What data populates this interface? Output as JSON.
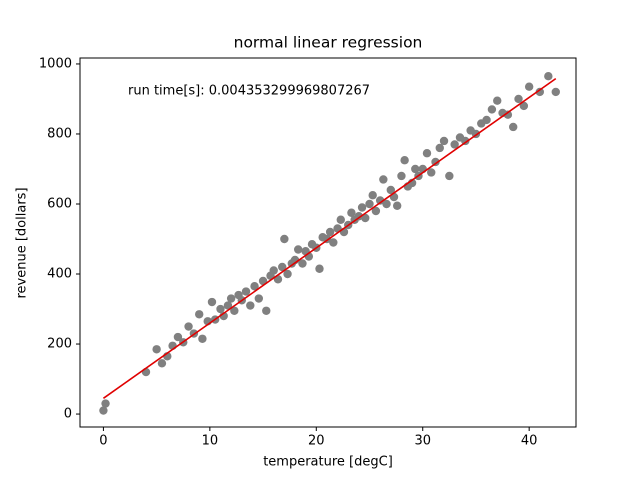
{
  "chart_data": {
    "type": "scatter",
    "title": "normal linear regression",
    "x_label": "temperature [degC]",
    "y_label": "revenue [dollars]",
    "annotation": "run time[s]: 0.004353299969807267",
    "xlim": [
      -2.2,
      44.4
    ],
    "ylim": [
      -37,
      1017
    ],
    "xticks": [
      0,
      10,
      20,
      30,
      40
    ],
    "yticks": [
      0,
      200,
      400,
      600,
      800,
      1000
    ],
    "grid": false,
    "series": [
      {
        "type": "scatter",
        "color": "#808080",
        "x": [
          0,
          0.2,
          4,
          5,
          5.5,
          6,
          6.5,
          7,
          7.5,
          8,
          8.5,
          9,
          9.3,
          9.8,
          10.2,
          10.5,
          11,
          11.3,
          11.7,
          12,
          12.3,
          12.7,
          13,
          13.4,
          13.8,
          14.2,
          14.6,
          15,
          15.3,
          15.7,
          16,
          16.4,
          16.8,
          17,
          17.3,
          17.7,
          18,
          18.3,
          18.7,
          19,
          19.3,
          19.6,
          20,
          20.3,
          20.6,
          21,
          21.3,
          21.6,
          22,
          22.3,
          22.6,
          23,
          23.3,
          23.6,
          24,
          24.3,
          24.6,
          25,
          25.3,
          25.6,
          26,
          26.3,
          26.6,
          27,
          27.3,
          27.6,
          28,
          28.3,
          28.6,
          29,
          29.3,
          29.6,
          30,
          30.4,
          30.8,
          31.2,
          31.6,
          32,
          32.5,
          33,
          33.5,
          34,
          34.5,
          35,
          35.5,
          36,
          36.5,
          37,
          37.5,
          38,
          38.5,
          39,
          39.5,
          40,
          41,
          41.8,
          42.5
        ],
        "values": [
          10,
          30,
          120,
          185,
          145,
          165,
          195,
          220,
          205,
          250,
          230,
          285,
          215,
          265,
          320,
          270,
          300,
          280,
          310,
          330,
          295,
          340,
          325,
          350,
          310,
          365,
          330,
          380,
          295,
          395,
          410,
          385,
          420,
          500,
          400,
          430,
          440,
          470,
          430,
          465,
          450,
          485,
          475,
          415,
          505,
          500,
          520,
          490,
          530,
          555,
          520,
          540,
          575,
          555,
          565,
          590,
          560,
          600,
          625,
          580,
          610,
          670,
          600,
          640,
          620,
          595,
          680,
          725,
          650,
          660,
          700,
          680,
          700,
          745,
          690,
          720,
          760,
          780,
          680,
          770,
          790,
          780,
          810,
          800,
          830,
          840,
          870,
          895,
          860,
          855,
          820,
          900,
          880,
          935,
          920,
          965,
          920
        ]
      },
      {
        "type": "line",
        "color": "#e00000",
        "x": [
          0,
          42.5
        ],
        "values": [
          45,
          958
        ]
      }
    ]
  }
}
